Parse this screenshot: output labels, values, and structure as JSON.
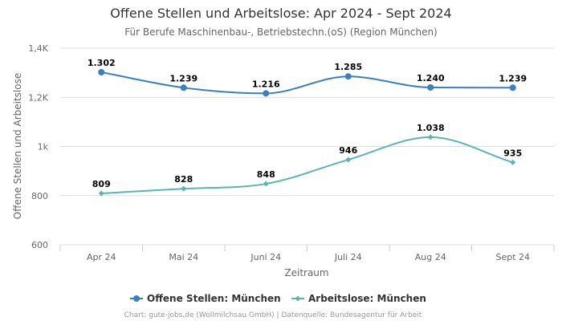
{
  "chart_data": {
    "type": "line",
    "title": "Offene Stellen und Arbeitslose: Apr 2024 - Sept 2024",
    "subtitle": "Für Berufe Maschinenbau-, Betriebstechn.(oS) (Region München)",
    "xlabel": "Zeitraum",
    "ylabel": "Offene Stellen und Arbeitslose",
    "categories": [
      "Apr 24",
      "Mai 24",
      "Juni 24",
      "Juli 24",
      "Aug 24",
      "Sept 24"
    ],
    "ylim": [
      600,
      1400
    ],
    "yticks": [
      600,
      800,
      1000,
      1200,
      1400
    ],
    "ytick_labels": [
      "600",
      "800",
      "1k",
      "1,2K",
      "1,4K"
    ],
    "grid": true,
    "legend_position": "bottom-center",
    "series": [
      {
        "name": "Offene Stellen: München",
        "color": "#3a7fbf",
        "marker": "circle",
        "values": [
          1302,
          1239,
          1216,
          1285,
          1240,
          1239
        ],
        "labels": [
          "1.302",
          "1.239",
          "1.216",
          "1.285",
          "1.240",
          "1.239"
        ]
      },
      {
        "name": "Arbeitslose: München",
        "color": "#5ab4b4",
        "marker": "diamond",
        "values": [
          809,
          828,
          848,
          946,
          1038,
          935
        ],
        "labels": [
          "809",
          "828",
          "848",
          "946",
          "1.038",
          "935"
        ]
      }
    ]
  },
  "credits": "Chart: gute-jobs.de (Wollmilchsau GmbH) | Datenquelle: Bundesagentur für Arbeit"
}
